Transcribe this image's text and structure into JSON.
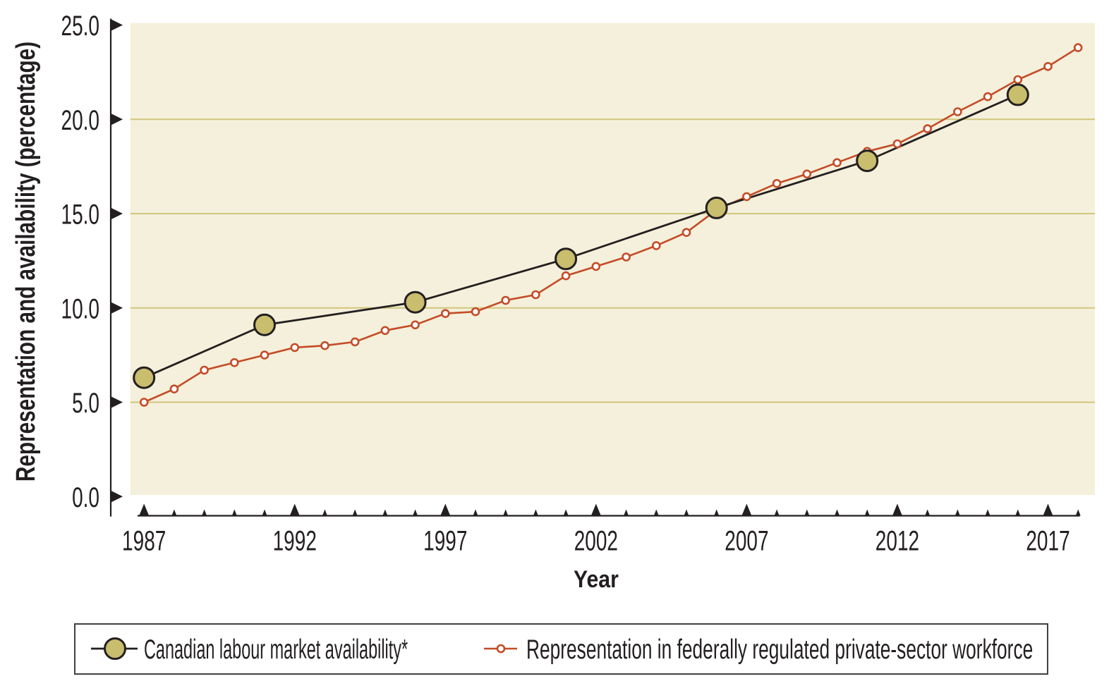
{
  "colors": {
    "ink": "#231f20",
    "plot_background": "#f4f0db",
    "gridline": "#d2c57c",
    "lma_line": "#231f20",
    "lma_marker_fill": "#c9bd6e",
    "lma_marker_stroke": "#231f20",
    "representation_line": "#c44b27",
    "representation_marker_fill": "#ffffff",
    "representation_marker_stroke": "#c44b27",
    "legend_border": "#404041"
  },
  "axes": {
    "x_title": "Year",
    "y_title": "Representation and availability (percentage)",
    "y_tick_labels": [
      "0.0",
      "5.0",
      "10.0",
      "15.0",
      "20.0",
      "25.0"
    ],
    "x_major_tick_labels": [
      "1987",
      "1992",
      "1997",
      "2002",
      "2007",
      "2012",
      "2017"
    ]
  },
  "legend": {
    "items": [
      {
        "label": "Canadian labour market availability*",
        "marker": "large-khaki-circle"
      },
      {
        "label": "Representation in federally regulated private-sector workforce",
        "marker": "small-orange-circle"
      }
    ]
  },
  "chart_data": {
    "type": "line",
    "title": "",
    "xlabel": "Year",
    "ylabel": "Representation and availability (percentage)",
    "xlim": [
      1986.5,
      2018.6
    ],
    "ylim": [
      0,
      25
    ],
    "y_ticks": [
      0,
      5,
      10,
      15,
      20,
      25
    ],
    "gridlines_y": [
      5,
      10,
      15,
      20
    ],
    "x_ticks_major": [
      1987,
      1992,
      1997,
      2002,
      2007,
      2012,
      2017
    ],
    "x_ticks_minor": [
      1988,
      1989,
      1990,
      1991,
      1993,
      1994,
      1995,
      1996,
      1998,
      1999,
      2000,
      2001,
      2003,
      2004,
      2005,
      2006,
      2008,
      2009,
      2010,
      2011,
      2013,
      2014,
      2015,
      2016,
      2018
    ],
    "grid": "horizontal",
    "legend_position": "bottom",
    "series": [
      {
        "name": "Canadian labour market availability*",
        "marker": "large-circle",
        "x": [
          1987,
          1991,
          1996,
          2001,
          2006,
          2011,
          2016
        ],
        "values": [
          6.3,
          9.1,
          10.3,
          12.6,
          15.3,
          17.8,
          21.3
        ]
      },
      {
        "name": "Representation in federally regulated private-sector workforce",
        "marker": "small-circle",
        "x": [
          1987,
          1988,
          1989,
          1990,
          1991,
          1992,
          1993,
          1994,
          1995,
          1996,
          1997,
          1998,
          1999,
          2000,
          2001,
          2002,
          2003,
          2004,
          2005,
          2006,
          2007,
          2008,
          2009,
          2010,
          2011,
          2012,
          2013,
          2014,
          2015,
          2016,
          2017,
          2018
        ],
        "values": [
          5.0,
          5.7,
          6.7,
          7.1,
          7.5,
          7.9,
          8.0,
          8.2,
          8.8,
          9.1,
          9.7,
          9.8,
          10.4,
          10.7,
          11.7,
          12.2,
          12.7,
          13.3,
          14.0,
          15.2,
          15.9,
          16.6,
          17.1,
          17.7,
          18.3,
          18.7,
          19.5,
          20.4,
          21.2,
          22.1,
          22.8,
          23.8
        ]
      }
    ]
  }
}
